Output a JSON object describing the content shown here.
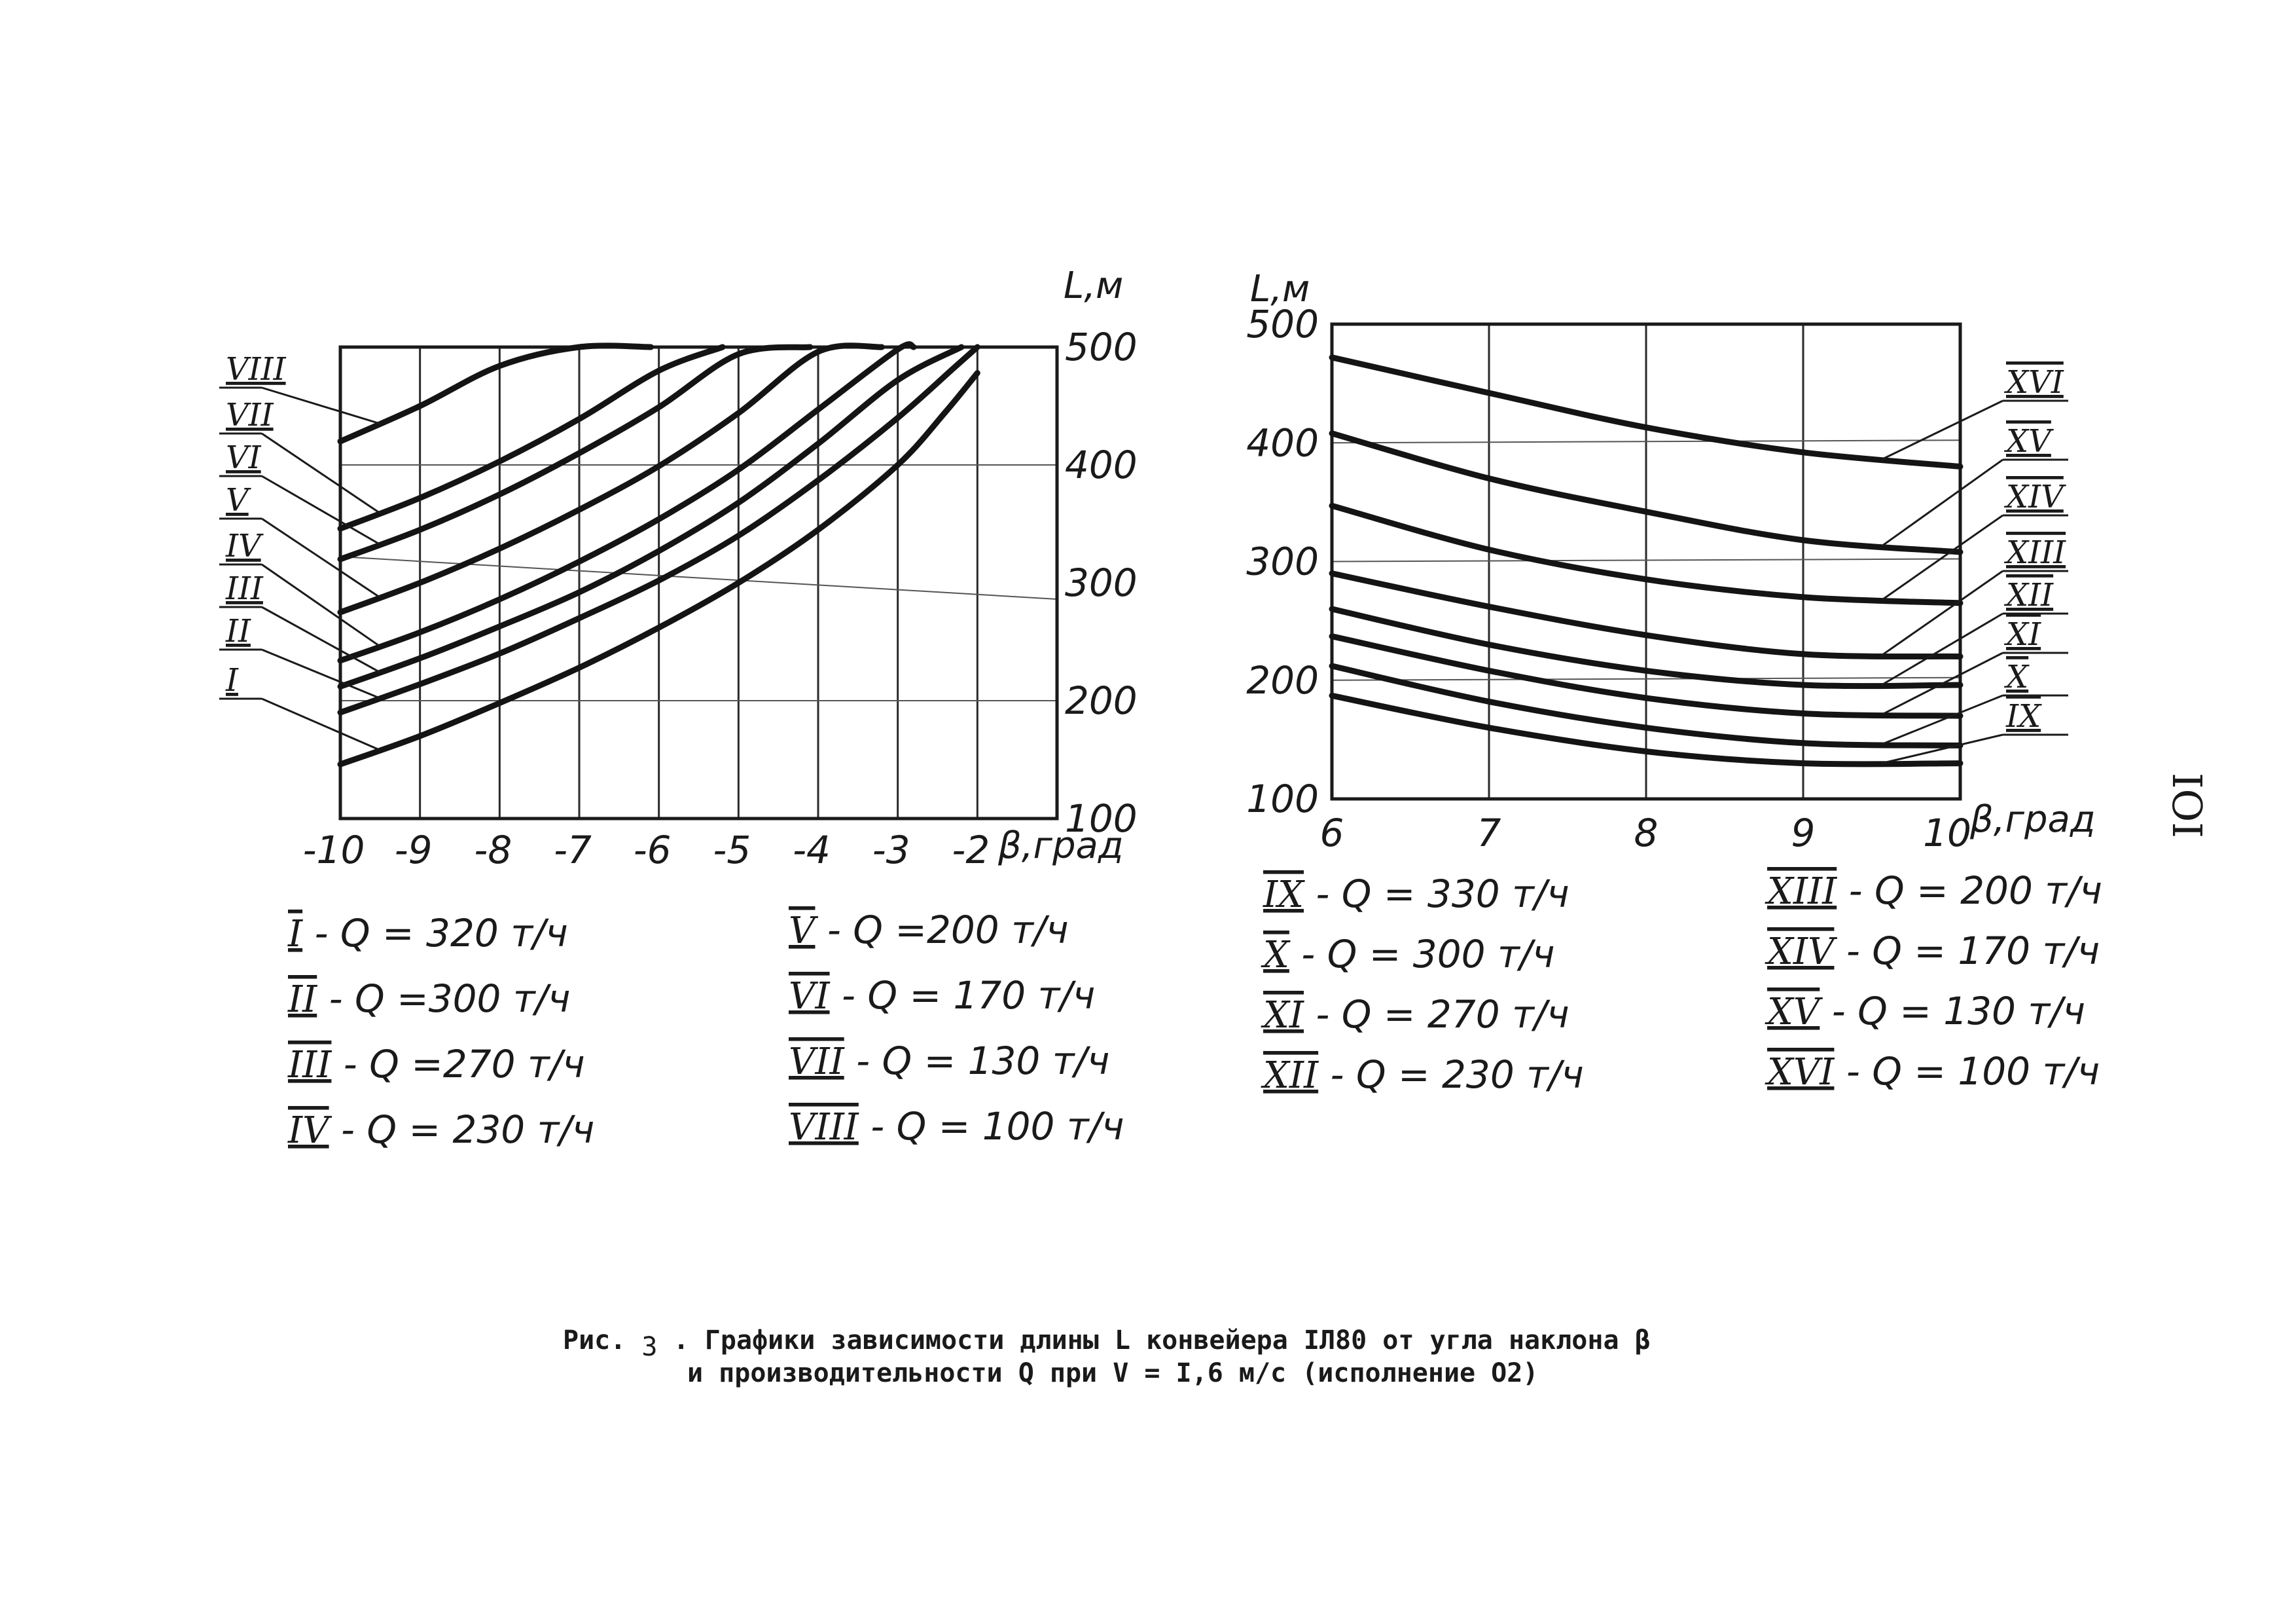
{
  "charts": [
    {
      "type": "line",
      "ylabel": "L,м",
      "xlabel": "β,град",
      "x_ticks": [
        "-10",
        "-9",
        "-8",
        "-7",
        "-6",
        "-5",
        "-4",
        "-3",
        "-2"
      ],
      "y_ticks": [
        "100",
        "200",
        "300",
        "400",
        "500"
      ],
      "xlim": [
        -10,
        -1
      ],
      "ylim": [
        100,
        500
      ],
      "series": [
        {
          "name": "I",
          "x": [
            -10,
            -9,
            -8,
            -7,
            -6,
            -5,
            -4,
            -3,
            -2.4,
            -2.0
          ],
          "y": [
            146,
            170,
            198,
            228,
            262,
            300,
            345,
            400,
            445,
            478
          ]
        },
        {
          "name": "II",
          "x": [
            -10,
            -9,
            -8,
            -7,
            -6,
            -5,
            -4,
            -3,
            -2.3,
            -2.0
          ],
          "y": [
            190,
            214,
            240,
            270,
            302,
            340,
            387,
            440,
            482,
            500
          ]
        },
        {
          "name": "III",
          "x": [
            -10,
            -9,
            -8,
            -7,
            -6,
            -5,
            -4,
            -3,
            -2.2
          ],
          "y": [
            212,
            236,
            263,
            292,
            327,
            368,
            418,
            472,
            500
          ]
        },
        {
          "name": "IV",
          "x": [
            -10,
            -9,
            -8,
            -7,
            -6,
            -5,
            -4,
            -3,
            -2.8
          ],
          "y": [
            234,
            258,
            286,
            318,
            354,
            396,
            447,
            498,
            500
          ]
        },
        {
          "name": "V",
          "x": [
            -10,
            -9,
            -8,
            -7,
            -6,
            -5,
            -4,
            -3.2
          ],
          "y": [
            275,
            300,
            329,
            362,
            399,
            444,
            496,
            500
          ]
        },
        {
          "name": "VI",
          "x": [
            -10,
            -9,
            -8,
            -7,
            -6,
            -5,
            -4.1
          ],
          "y": [
            320,
            345,
            375,
            410,
            449,
            494,
            500
          ]
        },
        {
          "name": "VII",
          "x": [
            -10,
            -9,
            -8,
            -7,
            -6,
            -5.2
          ],
          "y": [
            346,
            372,
            403,
            439,
            480,
            500
          ]
        },
        {
          "name": "VIII",
          "x": [
            -10,
            -9,
            -8,
            -7,
            -6.1
          ],
          "y": [
            420,
            450,
            484,
            500,
            500
          ]
        }
      ]
    },
    {
      "type": "line",
      "ylabel": "L,м",
      "xlabel": "β,град",
      "x_ticks": [
        "6",
        "7",
        "8",
        "9",
        "10"
      ],
      "y_ticks": [
        "100",
        "200",
        "300",
        "400",
        "500"
      ],
      "xlim": [
        6,
        10
      ],
      "ylim": [
        100,
        500
      ],
      "series": [
        {
          "name": "IX",
          "x": [
            6,
            7,
            8,
            9,
            10
          ],
          "y": [
            187,
            160,
            140,
            130,
            130
          ]
        },
        {
          "name": "X",
          "x": [
            6,
            7,
            8,
            9,
            10
          ],
          "y": [
            212,
            182,
            160,
            147,
            145
          ]
        },
        {
          "name": "XI",
          "x": [
            6,
            7,
            8,
            9,
            10
          ],
          "y": [
            237,
            208,
            185,
            172,
            170
          ]
        },
        {
          "name": "XII",
          "x": [
            6,
            7,
            8,
            9,
            10
          ],
          "y": [
            260,
            230,
            208,
            196,
            196
          ]
        },
        {
          "name": "XIII",
          "x": [
            6,
            7,
            8,
            9,
            10
          ],
          "y": [
            290,
            262,
            238,
            222,
            220
          ]
        },
        {
          "name": "XIV",
          "x": [
            6,
            7,
            8,
            9,
            10
          ],
          "y": [
            347,
            310,
            285,
            270,
            265
          ]
        },
        {
          "name": "XV",
          "x": [
            6,
            7,
            8,
            9,
            10
          ],
          "y": [
            408,
            370,
            342,
            318,
            308
          ]
        },
        {
          "name": "XVI",
          "x": [
            6,
            7,
            8,
            9,
            10
          ],
          "y": [
            472,
            442,
            413,
            392,
            380
          ]
        }
      ]
    }
  ],
  "legend_left": [
    {
      "roman": "I",
      "text": " - Q  = 320 т/ч"
    },
    {
      "roman": "II",
      "text": " - Q  =300 т/ч"
    },
    {
      "roman": "III",
      "text": " - Q  =270 т/ч"
    },
    {
      "roman": "IV",
      "text": " - Q  = 230 т/ч"
    },
    {
      "roman": "V",
      "text": " - Q  =200 т/ч"
    },
    {
      "roman": "VI",
      "text": " - Q  = 170 т/ч"
    },
    {
      "roman": "VII",
      "text": " - Q  = 130 т/ч"
    },
    {
      "roman": "VIII",
      "text": " - Q  = 100 т/ч"
    }
  ],
  "legend_right": [
    {
      "roman": "IX",
      "text": " - Q = 330 т/ч"
    },
    {
      "roman": "X",
      "text": " - Q = 300 т/ч"
    },
    {
      "roman": "XI",
      "text": " - Q = 270 т/ч"
    },
    {
      "roman": "XII",
      "text": " - Q = 230 т/ч"
    },
    {
      "roman": "XIII",
      "text": " - Q = 200 т/ч"
    },
    {
      "roman": "XIV",
      "text": " - Q = 170 т/ч"
    },
    {
      "roman": "XV",
      "text": " - Q = 130 т/ч"
    },
    {
      "roman": "XVI",
      "text": " - Q = 100 т/ч"
    }
  ],
  "caption": {
    "line1_prefix": "Рис.",
    "fig_number": "3",
    "line1": ". Графики зависимости длины L конвейера IЛ80  от  угла наклона β",
    "line2": "и производительности Q при V = I,6 м/с (исполнение О2)"
  },
  "page_number": "IOI"
}
